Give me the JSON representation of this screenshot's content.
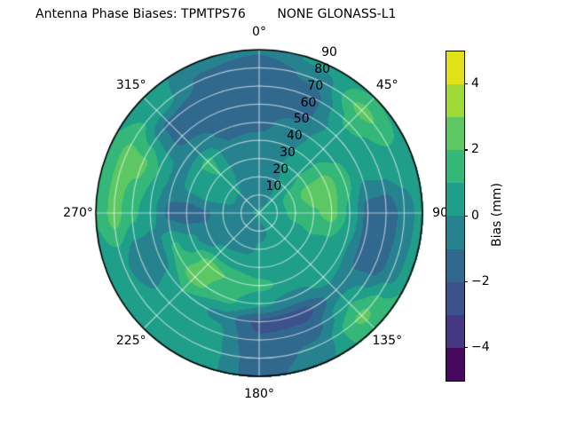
{
  "title": "Antenna Phase Biases: TPMTPS76        NONE GLONASS-L1",
  "chart_data": {
    "type": "heatmap",
    "projection": "polar-contour",
    "title": "Antenna Phase Biases: TPMTPS76        NONE GLONASS-L1",
    "theta_direction": "clockwise-from-top",
    "theta_ticks": [
      {
        "deg": 0,
        "label": "0°"
      },
      {
        "deg": 45,
        "label": "45°"
      },
      {
        "deg": 90,
        "label": "90"
      },
      {
        "deg": 135,
        "label": "135°"
      },
      {
        "deg": 180,
        "label": "180°"
      },
      {
        "deg": 225,
        "label": "225°"
      },
      {
        "deg": 270,
        "label": "270°"
      },
      {
        "deg": 315,
        "label": "315°"
      }
    ],
    "r_ticks": [
      {
        "value": 10,
        "label": "10"
      },
      {
        "value": 20,
        "label": "20"
      },
      {
        "value": 30,
        "label": "30"
      },
      {
        "value": 40,
        "label": "40"
      },
      {
        "value": 50,
        "label": "50"
      },
      {
        "value": 60,
        "label": "60"
      },
      {
        "value": 70,
        "label": "70"
      },
      {
        "value": 80,
        "label": "80"
      },
      {
        "value": 90,
        "label": "90"
      }
    ],
    "r_max": 90,
    "r_label_angle_deg": 22.5,
    "contour_levels": [
      -5,
      -4,
      -3,
      -2,
      -1,
      0,
      1,
      2,
      3,
      4,
      5
    ],
    "colorbar": {
      "label": "Bias (mm)",
      "vmin": -5,
      "vmax": 5,
      "ticks": [
        {
          "value": 4,
          "label": "4"
        },
        {
          "value": 2,
          "label": "2"
        },
        {
          "value": 0,
          "label": "0"
        },
        {
          "value": -2,
          "label": "−2"
        },
        {
          "value": -4,
          "label": "−4"
        }
      ],
      "band_colors": [
        "#46085c",
        "#453781",
        "#3b528b",
        "#31688e",
        "#26828e",
        "#1f9e89",
        "#35b779",
        "#5dc863",
        "#a0da39",
        "#dfe318"
      ]
    },
    "grid_line_color": "rgba(255,255,255,0.6)",
    "outline_color": "#000000",
    "grid": {
      "azimuth_deg": [
        0,
        22.5,
        45,
        67.5,
        90,
        112.5,
        135,
        157.5,
        180,
        202.5,
        225,
        247.5,
        270,
        292.5,
        315,
        337.5
      ],
      "radius": [
        0,
        10,
        20,
        30,
        40,
        50,
        60,
        70,
        80,
        90
      ],
      "bias_mm": [
        [
          0.1,
          0.1,
          0.1,
          0.1,
          0.1,
          0.1,
          0.1,
          0.1,
          0.1,
          0.1,
          0.1,
          0.1,
          0.1,
          0.1,
          0.1,
          0.1
        ],
        [
          -0.4,
          -0.2,
          0.3,
          0.6,
          0.6,
          0.4,
          0.2,
          0.0,
          -0.2,
          -0.4,
          -0.5,
          -0.5,
          -0.4,
          -0.2,
          -0.3,
          -0.4
        ],
        [
          -0.6,
          -0.2,
          0.8,
          1.7,
          1.4,
          0.8,
          0.4,
          0.2,
          0.1,
          -0.3,
          -0.6,
          -0.7,
          -0.6,
          0.2,
          0.2,
          -0.5
        ],
        [
          -0.5,
          0.0,
          1.0,
          2.4,
          1.9,
          1.0,
          0.6,
          0.5,
          0.6,
          0.6,
          0.3,
          -0.8,
          -1.1,
          0.6,
          1.0,
          -0.6
        ],
        [
          -0.8,
          -0.2,
          0.9,
          2.5,
          2.3,
          0.9,
          0.6,
          0.8,
          1.2,
          1.9,
          2.4,
          0.3,
          -1.6,
          0.3,
          1.2,
          -0.9
        ],
        [
          -1.2,
          -0.6,
          0.7,
          1.3,
          0.8,
          0.1,
          0.3,
          -0.4,
          0.2,
          1.3,
          2.4,
          1.2,
          -1.2,
          -0.4,
          -0.5,
          -1.2
        ],
        [
          -1.6,
          -1.3,
          0.4,
          0.2,
          -1.4,
          -1.2,
          -0.5,
          -2.4,
          -2.2,
          -0.2,
          1.0,
          -0.6,
          0.3,
          1.0,
          -1.3,
          -1.6
        ],
        [
          -1.7,
          -1.5,
          1.2,
          0.5,
          -1.7,
          -1.5,
          1.0,
          -1.6,
          -1.9,
          0.4,
          0.6,
          -1.0,
          1.2,
          2.2,
          -1.2,
          -1.7
        ],
        [
          -1.5,
          -0.8,
          2.3,
          0.8,
          -0.6,
          -0.5,
          2.2,
          -0.8,
          -1.6,
          0.5,
          1.0,
          0.2,
          2.4,
          2.3,
          0.6,
          -1.2
        ],
        [
          -0.9,
          0.3,
          1.0,
          0.8,
          0.5,
          0.8,
          1.6,
          -0.3,
          -1.5,
          0.5,
          1.0,
          0.3,
          1.1,
          1.2,
          0.5,
          -0.6
        ]
      ]
    }
  }
}
